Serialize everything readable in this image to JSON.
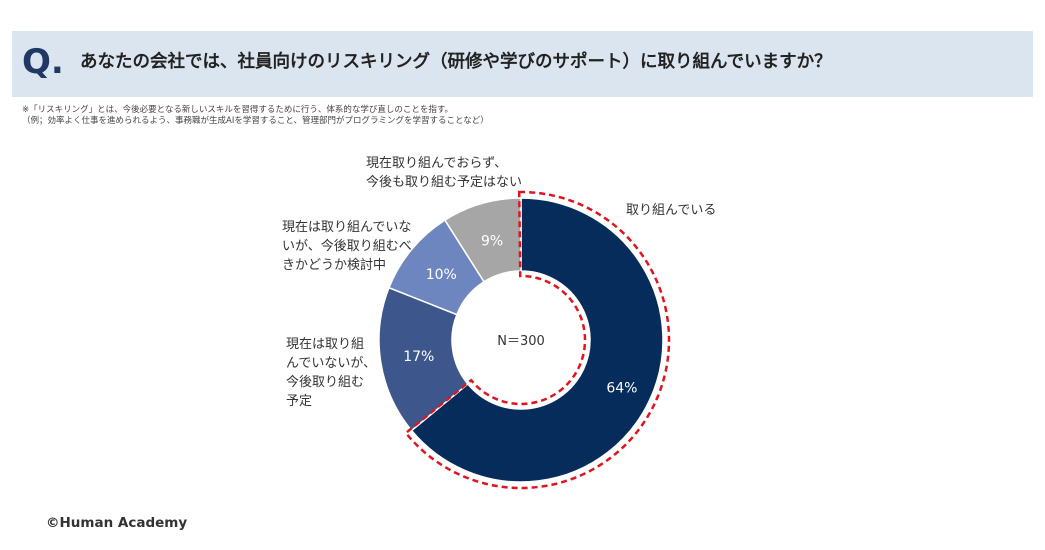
{
  "question": {
    "mark": "Q.",
    "text": "あなたの会社では、社員向けのリスキリング（研修や学びのサポート）に取り組んでいますか？"
  },
  "notes": [
    "※「リスキリング」とは、今後必要となる新しいスキルを習得するために行う、体系的な学び直しのことを指す。",
    "（例；効率よく仕事を進められるよう、事務職が生成AIを学習すること、管理部門がプログラミングを学習することなど）"
  ],
  "chart_data": {
    "type": "pie",
    "variant": "donut",
    "center_label": "N＝300",
    "highlighted_category": "取り組んでいる",
    "slices": [
      {
        "label": "取り組んでいる",
        "value": 64,
        "display": "64%",
        "color": "#062c5c"
      },
      {
        "label": "現在は取り組んでいないが、今後取り組む予定",
        "value": 17,
        "display": "17%",
        "color": "#3d578d"
      },
      {
        "label": "現在は取り組んでいないが、今後取り組むべきかどうか検討中",
        "value": 10,
        "display": "10%",
        "color": "#6e86bf"
      },
      {
        "label": "現在取り組んでおらず、今後も取り組む予定はない",
        "value": 9,
        "display": "9%",
        "color": "#a6a6a6"
      }
    ]
  },
  "callouts": {
    "slice_0": "取り組んでいる",
    "slice_1": "現在は取り組\nんでいないが、\n今後取り組む\n予定",
    "slice_2": "現在は取り組んでいな\nいが、今後取り組むべ\nきかどうか検討中",
    "slice_3": "現在取り組んでおらず、\n今後も取り組む予定はない"
  },
  "copyright": "©Human Academy"
}
